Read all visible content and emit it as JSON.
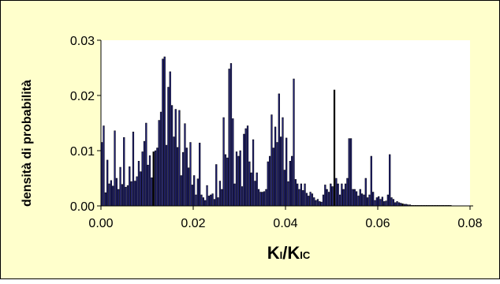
{
  "chart_data": {
    "type": "bar",
    "title": "",
    "xlabel": "KI/KIC",
    "ylabel": "densità di probabilità",
    "xlim": [
      0,
      0.08
    ],
    "ylim": [
      0,
      0.03
    ],
    "x_ticks": [
      "0.00",
      "0.02",
      "0.04",
      "0.06",
      "0.08"
    ],
    "y_ticks": [
      "0.00",
      "0.01",
      "0.02",
      "0.03"
    ],
    "grid": false,
    "legend": "none",
    "bar_width": 0.0004,
    "colors": {
      "bar_fill": "#1f1f7a",
      "bar_highlight": "#000000",
      "plot_bg": "#ffffff",
      "frame_bg": "#ffffcc"
    },
    "x": [
      0.0002,
      0.0006,
      0.001,
      0.0014,
      0.0018,
      0.0022,
      0.0026,
      0.003,
      0.0034,
      0.0038,
      0.0042,
      0.0046,
      0.005,
      0.0054,
      0.0058,
      0.0062,
      0.0066,
      0.007,
      0.0074,
      0.0078,
      0.0082,
      0.0086,
      0.009,
      0.0094,
      0.0098,
      0.0102,
      0.0106,
      0.011,
      0.0114,
      0.0118,
      0.0122,
      0.0126,
      0.013,
      0.0134,
      0.0138,
      0.0142,
      0.0146,
      0.015,
      0.0154,
      0.0158,
      0.0162,
      0.0166,
      0.017,
      0.0174,
      0.0178,
      0.0182,
      0.0186,
      0.019,
      0.0194,
      0.0198,
      0.0202,
      0.0206,
      0.021,
      0.0214,
      0.0218,
      0.0222,
      0.0226,
      0.023,
      0.0234,
      0.0238,
      0.0242,
      0.0246,
      0.025,
      0.0254,
      0.0258,
      0.0262,
      0.0266,
      0.027,
      0.0274,
      0.0278,
      0.0282,
      0.0286,
      0.029,
      0.0294,
      0.0298,
      0.0302,
      0.0306,
      0.031,
      0.0314,
      0.0318,
      0.0322,
      0.0326,
      0.033,
      0.0334,
      0.0338,
      0.0342,
      0.0346,
      0.035,
      0.0354,
      0.0358,
      0.0362,
      0.0366,
      0.037,
      0.0374,
      0.0378,
      0.0382,
      0.0386,
      0.039,
      0.0394,
      0.0398,
      0.0402,
      0.0406,
      0.041,
      0.0414,
      0.0418,
      0.0422,
      0.0426,
      0.043,
      0.0434,
      0.0438,
      0.0442,
      0.0446,
      0.045,
      0.0454,
      0.0458,
      0.0462,
      0.0466,
      0.047,
      0.0474,
      0.0478,
      0.0482,
      0.0486,
      0.049,
      0.0494,
      0.0498,
      0.0502,
      0.0506,
      0.051,
      0.0514,
      0.0518,
      0.0522,
      0.0526,
      0.053,
      0.0534,
      0.0538,
      0.0542,
      0.0546,
      0.055,
      0.0554,
      0.0558,
      0.0562,
      0.0566,
      0.057,
      0.0574,
      0.0578,
      0.0582,
      0.0586,
      0.059,
      0.0594,
      0.0598,
      0.0602,
      0.0606,
      0.061,
      0.0614,
      0.0618,
      0.0622,
      0.0626,
      0.063,
      0.0634,
      0.0638,
      0.0642,
      0.0646,
      0.065,
      0.0654,
      0.0658,
      0.0662,
      0.0666,
      0.067,
      0.0674,
      0.0678,
      0.0682,
      0.0686,
      0.069,
      0.0694,
      0.0698,
      0.0702,
      0.0706,
      0.071,
      0.0714,
      0.0718,
      0.0722,
      0.0726,
      0.073,
      0.0734,
      0.0738,
      0.0742,
      0.0746,
      0.075,
      0.0754,
      0.0758
    ],
    "values": [
      0.0115,
      0.0145,
      0.0024,
      0.0083,
      0.004,
      0.0046,
      0.0036,
      0.0136,
      0.005,
      0.003,
      0.007,
      0.0039,
      0.0124,
      0.0034,
      0.0037,
      0.0071,
      0.0044,
      0.0134,
      0.0045,
      0.0053,
      0.0081,
      0.0062,
      0.0098,
      0.0117,
      0.015,
      0.0074,
      0.0091,
      0.0051,
      0.0098,
      0.01,
      0.0105,
      0.0155,
      0.017,
      0.0266,
      0.027,
      0.011,
      0.0215,
      0.0243,
      0.0182,
      0.0125,
      0.0175,
      0.0106,
      0.0173,
      0.0055,
      0.0097,
      0.0149,
      0.0105,
      0.0069,
      0.0115,
      0.0038,
      0.0055,
      0.002,
      0.0049,
      0.0114,
      0.002,
      0.0015,
      0.001,
      0.0037,
      0.0018,
      0.002,
      0.0022,
      0.0012,
      0.0075,
      0.0015,
      0.0045,
      0.003,
      0.016,
      0.0093,
      0.0087,
      0.0248,
      0.0258,
      0.0158,
      0.004,
      0.0098,
      0.009,
      0.01,
      0.0035,
      0.013,
      0.014,
      0.0145,
      0.008,
      0.006,
      0.012,
      0.0045,
      0.006,
      0.003,
      0.0025,
      0.0025,
      0.0026,
      0.003,
      0.008,
      0.009,
      0.0165,
      0.0105,
      0.0143,
      0.0115,
      0.0203,
      0.0125,
      0.016,
      0.0065,
      0.0123,
      0.0044,
      0.0081,
      0.009,
      0.023,
      0.0048,
      0.004,
      0.003,
      0.004,
      0.0028,
      0.004,
      0.0023,
      0.0018,
      0.0025,
      0.0022,
      0.0015,
      0.001,
      0.0012,
      0.0008,
      0.0007,
      0.002,
      0.0038,
      0.003,
      0.0025,
      0.004,
      0.0035,
      0.021,
      0.005,
      0.004,
      0.002,
      0.004,
      0.003,
      0.004,
      0.005,
      0.0122,
      0.0122,
      0.003,
      0.003,
      0.0026,
      0.0018,
      0.003,
      0.0022,
      0.002,
      0.005,
      0.0015,
      0.002,
      0.009,
      0.0025,
      0.001,
      0.0015,
      0.0017,
      0.0012,
      0.0016,
      0.0008,
      0.0009,
      0.002,
      0.0093,
      0.0015,
      0.0012,
      0.0006,
      0.0008,
      0.0006,
      0.0005,
      0.0004,
      0.0003,
      0.0003,
      0.0002,
      0.0002,
      0.0001,
      0.0001,
      0.0001,
      0.0001,
      0.0001,
      0.0001,
      0.0001,
      0.0001,
      0.0001,
      0.0001,
      0.0001,
      0.0001,
      0.0001,
      0.0001,
      0.0001,
      0.0001,
      0.0001,
      0.0001,
      0.0001,
      0.0001,
      0.0001,
      0.0001
    ],
    "dark_bar_indices": [
      28,
      126,
      163
    ]
  }
}
